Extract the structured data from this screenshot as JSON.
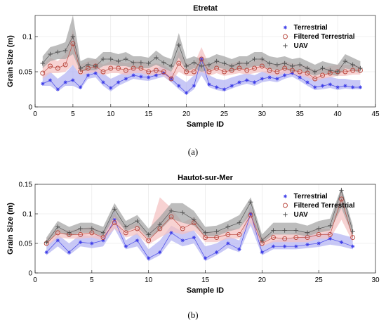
{
  "colors": {
    "terrestrial": "#3a3ae8",
    "terrestrial_band": "#b3b3f2",
    "filtered": "#b8443a",
    "filtered_band": "#f4c0c0",
    "uav": "#4d4d4d",
    "uav_band": "#a3a3a3"
  },
  "chart_data": [
    {
      "type": "line",
      "title": "Etretat",
      "panel_label": "(a)",
      "xlabel": "Sample ID",
      "ylabel": "Grain Size (m)",
      "xlim": [
        0,
        45
      ],
      "ylim": [
        0,
        0.13
      ],
      "xticks": [
        0,
        5,
        10,
        15,
        20,
        25,
        30,
        35,
        40,
        45
      ],
      "yticks": [
        0,
        0.05,
        0.1
      ],
      "grid": true,
      "legend": "top-right",
      "x": [
        1,
        2,
        3,
        4,
        5,
        6,
        7,
        8,
        9,
        10,
        11,
        12,
        13,
        14,
        15,
        16,
        17,
        18,
        19,
        20,
        21,
        22,
        23,
        24,
        25,
        26,
        27,
        28,
        29,
        30,
        31,
        32,
        33,
        34,
        35,
        36,
        37,
        38,
        39,
        40,
        41,
        42,
        43
      ],
      "series": [
        {
          "name": "Terrestrial",
          "marker": "star",
          "values": [
            0.033,
            0.038,
            0.025,
            0.035,
            0.038,
            0.028,
            0.045,
            0.048,
            0.035,
            0.027,
            0.035,
            0.04,
            0.045,
            0.043,
            0.042,
            0.045,
            0.048,
            0.04,
            0.03,
            0.02,
            0.03,
            0.068,
            0.032,
            0.028,
            0.025,
            0.03,
            0.035,
            0.038,
            0.035,
            0.04,
            0.042,
            0.04,
            0.045,
            0.048,
            0.042,
            0.035,
            0.028,
            0.03,
            0.032,
            0.028,
            0.03,
            0.028,
            0.028
          ],
          "lower": [
            0.03,
            0.03,
            0.022,
            0.03,
            0.03,
            0.025,
            0.04,
            0.042,
            0.03,
            0.022,
            0.03,
            0.035,
            0.04,
            0.038,
            0.037,
            0.04,
            0.043,
            0.035,
            0.025,
            0.017,
            0.025,
            0.045,
            0.028,
            0.024,
            0.022,
            0.026,
            0.03,
            0.033,
            0.03,
            0.035,
            0.037,
            0.035,
            0.04,
            0.043,
            0.037,
            0.03,
            0.024,
            0.025,
            0.027,
            0.024,
            0.026,
            0.025,
            0.025
          ],
          "upper": [
            0.045,
            0.05,
            0.04,
            0.048,
            0.06,
            0.045,
            0.055,
            0.058,
            0.048,
            0.04,
            0.045,
            0.05,
            0.055,
            0.052,
            0.05,
            0.055,
            0.058,
            0.05,
            0.042,
            0.035,
            0.045,
            0.075,
            0.045,
            0.04,
            0.038,
            0.042,
            0.045,
            0.048,
            0.045,
            0.05,
            0.052,
            0.048,
            0.052,
            0.055,
            0.05,
            0.045,
            0.04,
            0.042,
            0.043,
            0.04,
            0.04,
            0.038,
            0.038
          ]
        },
        {
          "name": "Filtered Terrestrial",
          "marker": "circle",
          "values": [
            0.048,
            0.058,
            0.055,
            0.06,
            0.09,
            0.05,
            0.055,
            0.058,
            0.05,
            0.055,
            0.055,
            0.052,
            0.055,
            0.055,
            0.05,
            0.052,
            0.05,
            0.04,
            0.062,
            0.05,
            0.05,
            0.068,
            0.05,
            0.055,
            0.05,
            0.052,
            0.055,
            0.052,
            0.055,
            0.058,
            0.052,
            0.05,
            0.055,
            0.052,
            0.05,
            0.048,
            0.04,
            0.045,
            0.048,
            0.05,
            0.05,
            0.052,
            0.052
          ],
          "lower": [
            0.04,
            0.048,
            0.048,
            0.05,
            0.06,
            0.045,
            0.048,
            0.05,
            0.045,
            0.048,
            0.048,
            0.045,
            0.048,
            0.048,
            0.045,
            0.046,
            0.044,
            0.036,
            0.05,
            0.044,
            0.044,
            0.05,
            0.044,
            0.048,
            0.044,
            0.046,
            0.048,
            0.046,
            0.048,
            0.05,
            0.046,
            0.044,
            0.048,
            0.046,
            0.044,
            0.042,
            0.036,
            0.04,
            0.042,
            0.044,
            0.044,
            0.046,
            0.046
          ],
          "upper": [
            0.06,
            0.07,
            0.065,
            0.075,
            0.11,
            0.06,
            0.065,
            0.068,
            0.06,
            0.065,
            0.065,
            0.062,
            0.065,
            0.065,
            0.06,
            0.062,
            0.06,
            0.052,
            0.08,
            0.062,
            0.06,
            0.085,
            0.06,
            0.065,
            0.06,
            0.062,
            0.065,
            0.062,
            0.065,
            0.07,
            0.062,
            0.06,
            0.065,
            0.062,
            0.06,
            0.058,
            0.052,
            0.055,
            0.058,
            0.06,
            0.06,
            0.06,
            0.058
          ]
        },
        {
          "name": "UAV",
          "marker": "plus",
          "values": [
            0.062,
            0.075,
            0.078,
            0.08,
            0.1,
            0.055,
            0.06,
            0.058,
            0.068,
            0.068,
            0.065,
            0.068,
            0.063,
            0.063,
            0.062,
            0.07,
            0.063,
            0.058,
            0.088,
            0.058,
            0.063,
            0.058,
            0.06,
            0.065,
            0.062,
            0.058,
            0.062,
            0.062,
            0.068,
            0.068,
            0.062,
            0.06,
            0.062,
            0.058,
            0.06,
            0.055,
            0.05,
            0.055,
            0.052,
            0.05,
            0.065,
            0.06,
            0.055
          ],
          "lower": [
            0.055,
            0.065,
            0.068,
            0.068,
            0.075,
            0.05,
            0.052,
            0.052,
            0.058,
            0.06,
            0.058,
            0.058,
            0.055,
            0.055,
            0.055,
            0.06,
            0.055,
            0.05,
            0.07,
            0.05,
            0.055,
            0.05,
            0.052,
            0.056,
            0.054,
            0.05,
            0.054,
            0.054,
            0.058,
            0.058,
            0.054,
            0.052,
            0.054,
            0.05,
            0.052,
            0.048,
            0.044,
            0.048,
            0.046,
            0.044,
            0.055,
            0.052,
            0.048
          ],
          "upper": [
            0.072,
            0.085,
            0.088,
            0.092,
            0.13,
            0.065,
            0.07,
            0.068,
            0.078,
            0.078,
            0.075,
            0.078,
            0.072,
            0.072,
            0.07,
            0.08,
            0.072,
            0.068,
            0.105,
            0.068,
            0.072,
            0.068,
            0.07,
            0.075,
            0.072,
            0.068,
            0.072,
            0.072,
            0.078,
            0.078,
            0.072,
            0.07,
            0.072,
            0.068,
            0.07,
            0.065,
            0.06,
            0.065,
            0.062,
            0.06,
            0.075,
            0.07,
            0.065
          ]
        }
      ]
    },
    {
      "type": "line",
      "title": "Hautot-sur-Mer",
      "panel_label": "(b)",
      "xlabel": "Sample ID",
      "ylabel": "Grain Size (m)",
      "xlim": [
        0,
        30
      ],
      "ylim": [
        0,
        0.15
      ],
      "xticks": [
        0,
        5,
        10,
        15,
        20,
        25,
        30
      ],
      "yticks": [
        0,
        0.05,
        0.1,
        0.15
      ],
      "grid": true,
      "legend": "top-right",
      "x": [
        1,
        2,
        3,
        4,
        5,
        6,
        7,
        8,
        9,
        10,
        11,
        12,
        13,
        14,
        15,
        16,
        17,
        18,
        19,
        20,
        21,
        22,
        23,
        24,
        25,
        26,
        27,
        28
      ],
      "series": [
        {
          "name": "Terrestrial",
          "marker": "star",
          "values": [
            0.035,
            0.055,
            0.035,
            0.052,
            0.05,
            0.055,
            0.09,
            0.045,
            0.055,
            0.025,
            0.035,
            0.068,
            0.055,
            0.06,
            0.025,
            0.035,
            0.05,
            0.04,
            0.1,
            0.035,
            0.045,
            0.045,
            0.045,
            0.048,
            0.05,
            0.058,
            0.052,
            0.045
          ],
          "lower": [
            0.03,
            0.045,
            0.03,
            0.045,
            0.042,
            0.045,
            0.075,
            0.04,
            0.045,
            0.02,
            0.03,
            0.055,
            0.045,
            0.05,
            0.02,
            0.03,
            0.042,
            0.035,
            0.08,
            0.03,
            0.04,
            0.04,
            0.04,
            0.042,
            0.044,
            0.048,
            0.045,
            0.04
          ],
          "upper": [
            0.045,
            0.065,
            0.05,
            0.065,
            0.062,
            0.068,
            0.105,
            0.055,
            0.068,
            0.04,
            0.055,
            0.08,
            0.07,
            0.072,
            0.045,
            0.05,
            0.062,
            0.055,
            0.115,
            0.045,
            0.055,
            0.058,
            0.058,
            0.065,
            0.065,
            0.07,
            0.065,
            0.06
          ]
        },
        {
          "name": "Filtered Terrestrial",
          "marker": "circle",
          "values": [
            0.05,
            0.068,
            0.065,
            0.065,
            0.068,
            0.06,
            0.085,
            0.068,
            0.075,
            0.055,
            0.075,
            0.095,
            0.075,
            0.085,
            0.06,
            0.06,
            0.065,
            0.065,
            0.098,
            0.05,
            0.06,
            0.058,
            0.06,
            0.06,
            0.065,
            0.065,
            0.125,
            0.06
          ],
          "lower": [
            0.045,
            0.06,
            0.058,
            0.058,
            0.06,
            0.055,
            0.075,
            0.06,
            0.065,
            0.048,
            0.06,
            0.07,
            0.065,
            0.072,
            0.052,
            0.052,
            0.058,
            0.058,
            0.085,
            0.045,
            0.052,
            0.052,
            0.052,
            0.052,
            0.058,
            0.058,
            0.09,
            0.052
          ],
          "upper": [
            0.058,
            0.075,
            0.072,
            0.075,
            0.078,
            0.068,
            0.1,
            0.078,
            0.085,
            0.065,
            0.128,
            0.11,
            0.085,
            0.095,
            0.07,
            0.07,
            0.075,
            0.075,
            0.11,
            0.06,
            0.068,
            0.065,
            0.068,
            0.07,
            0.075,
            0.075,
            0.14,
            0.07
          ]
        },
        {
          "name": "UAV",
          "marker": "plus",
          "values": [
            0.052,
            0.078,
            0.068,
            0.075,
            0.075,
            0.068,
            0.108,
            0.078,
            0.088,
            0.065,
            0.082,
            0.105,
            0.102,
            0.09,
            0.068,
            0.07,
            0.078,
            0.085,
            0.12,
            0.055,
            0.072,
            0.072,
            0.072,
            0.068,
            0.075,
            0.08,
            0.14,
            0.07
          ],
          "lower": [
            0.048,
            0.07,
            0.062,
            0.068,
            0.068,
            0.062,
            0.095,
            0.07,
            0.078,
            0.058,
            0.072,
            0.092,
            0.085,
            0.08,
            0.062,
            0.062,
            0.07,
            0.075,
            0.1,
            0.05,
            0.065,
            0.065,
            0.065,
            0.062,
            0.068,
            0.072,
            0.11,
            0.062
          ],
          "upper": [
            0.06,
            0.088,
            0.078,
            0.085,
            0.085,
            0.078,
            0.118,
            0.088,
            0.098,
            0.075,
            0.095,
            0.118,
            0.118,
            0.105,
            0.078,
            0.08,
            0.088,
            0.098,
            0.128,
            0.065,
            0.085,
            0.085,
            0.085,
            0.08,
            0.088,
            0.092,
            0.145,
            0.08
          ]
        }
      ]
    }
  ]
}
